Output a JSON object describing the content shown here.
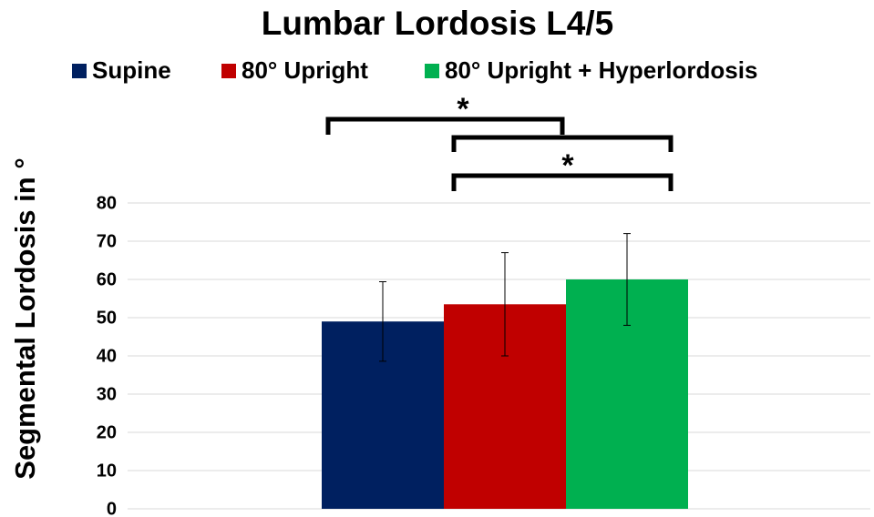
{
  "chart_data": {
    "type": "bar",
    "title": "Lumbar Lordosis L4/5",
    "y_label": "Segmental Lordosis in °",
    "categories": [
      null
    ],
    "series": [
      {
        "name": "Supine",
        "color": "#002060",
        "values": [
          49
        ],
        "errors": [
          10.4
        ]
      },
      {
        "name": "80° Upright",
        "color": "#c00000",
        "values": [
          53.5
        ],
        "errors": [
          13.5
        ]
      },
      {
        "name": "80° Upright + Hyperlordosis",
        "color": "#00b050",
        "values": [
          60
        ],
        "errors": [
          12
        ]
      }
    ],
    "ylim": [
      0,
      80
    ],
    "yticks": [
      0,
      10,
      20,
      30,
      40,
      50,
      60,
      70,
      80
    ],
    "grid": true,
    "legend": "top",
    "annotations": [
      "*",
      "*"
    ]
  }
}
